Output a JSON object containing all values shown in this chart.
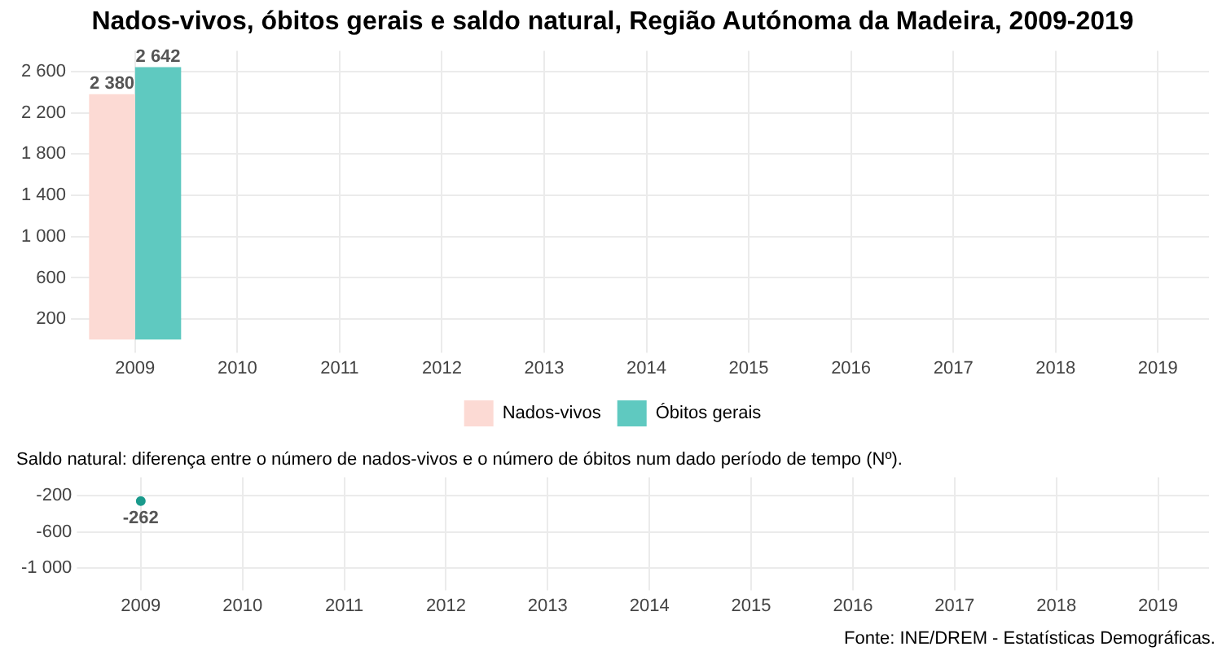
{
  "chart_data": [
    {
      "type": "bar",
      "title": "Nados-vivos, óbitos gerais e saldo natural, Região Autónoma da Madeira, 2009-2019",
      "categories": [
        "2009",
        "2010",
        "2011",
        "2012",
        "2013",
        "2014",
        "2015",
        "2016",
        "2017",
        "2018",
        "2019"
      ],
      "series": [
        {
          "name": "Nados-vivos",
          "color": "#fcdad4",
          "values": [
            2380,
            null,
            null,
            null,
            null,
            null,
            null,
            null,
            null,
            null,
            null
          ]
        },
        {
          "name": "Óbitos gerais",
          "color": "#5fc9c0",
          "values": [
            2642,
            null,
            null,
            null,
            null,
            null,
            null,
            null,
            null,
            null,
            null
          ]
        }
      ],
      "ylim": [
        0,
        2800
      ],
      "yticks": [
        200,
        600,
        1000,
        1400,
        1800,
        2200,
        2600
      ],
      "grid": true,
      "legend": "bottom",
      "data_labels": true
    },
    {
      "type": "line",
      "title": "Saldo natural: diferença entre o número de nados-vivos e o número de óbitos num dado período de tempo (Nº).",
      "categories": [
        "2009",
        "2010",
        "2011",
        "2012",
        "2013",
        "2014",
        "2015",
        "2016",
        "2017",
        "2018",
        "2019"
      ],
      "series": [
        {
          "color": "#1a9a8c",
          "values": [
            -262,
            null,
            null,
            null,
            null,
            null,
            null,
            null,
            null,
            null,
            null
          ]
        }
      ],
      "ylim": [
        -1100,
        0
      ],
      "yticks": [
        -200,
        -600,
        -1000
      ],
      "grid": true,
      "marker": "circle",
      "data_labels": true,
      "annotations": [
        "Fonte: INE/DREM - Estatísticas Demográficas."
      ]
    }
  ]
}
